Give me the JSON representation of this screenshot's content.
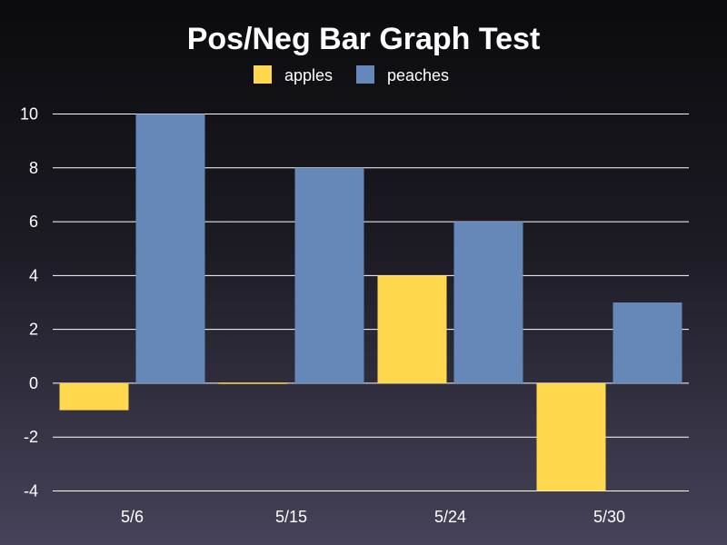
{
  "chart_data": {
    "type": "bar",
    "title": "Pos/Neg Bar Graph Test",
    "xlabel": "",
    "ylabel": "",
    "categories": [
      "5/6",
      "5/15",
      "5/24",
      "5/30"
    ],
    "series": [
      {
        "name": "apples",
        "values": [
          -1,
          0,
          4,
          -4
        ],
        "color": "#ffd84d"
      },
      {
        "name": "peaches",
        "values": [
          10,
          8,
          6,
          3
        ],
        "color": "#6688b8"
      }
    ],
    "ylim": [
      -4,
      10
    ],
    "yticks": [
      -4,
      -2,
      0,
      2,
      4,
      6,
      8,
      10
    ],
    "grid": true,
    "legend_position": "top"
  }
}
